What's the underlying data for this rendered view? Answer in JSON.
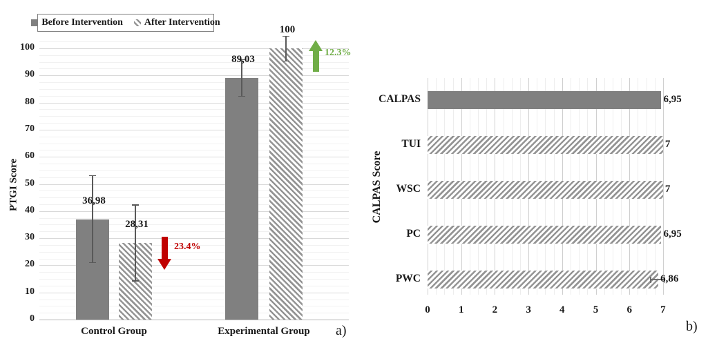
{
  "figure": {
    "background": "#ffffff"
  },
  "colors": {
    "bar_solid": "#808080",
    "hatch_line": "#949494",
    "grid_major": "#d9d9d9",
    "grid_minor": "#f1f1f1",
    "axis_line": "#b5b5b5",
    "error_bar": "#595959",
    "decrease": "#c00000",
    "increase": "#70ad47",
    "text": "#1a1a1a"
  },
  "chart_data": [
    {
      "panel_label": "a)",
      "type": "bar",
      "orientation": "vertical",
      "ylabel": "PTGI Score",
      "ylim": [
        0,
        100
      ],
      "ymajor": 10,
      "yminor": 2.5,
      "yticks": [
        "0",
        "10",
        "20",
        "30",
        "40",
        "50",
        "60",
        "70",
        "80",
        "90",
        "100"
      ],
      "categories": [
        "Control Group",
        "Experimental Group"
      ],
      "legend_position": "top-left",
      "series": [
        {
          "name": "Before Intervention",
          "style": "solid",
          "values": [
            36.98,
            89.03
          ],
          "value_labels": [
            "36,98",
            "89,03"
          ],
          "error_lo": [
            21,
            82.3
          ],
          "error_hi": [
            53,
            95.8
          ]
        },
        {
          "name": "After Intervention",
          "style": "hatched",
          "values": [
            28.31,
            100
          ],
          "value_labels": [
            "28,31",
            "100"
          ],
          "error_lo": [
            14.3,
            95.3
          ],
          "error_hi": [
            42.3,
            104.5
          ]
        }
      ],
      "annotations": [
        {
          "text": "23.4%",
          "direction": "down",
          "color": "#c00000",
          "category": "Control Group"
        },
        {
          "text": "12.3%",
          "direction": "up",
          "color": "#70ad47",
          "category": "Experimental Group"
        }
      ]
    },
    {
      "panel_label": "b)",
      "type": "bar",
      "orientation": "horizontal",
      "axis_label": "CALPAS Score",
      "xlim": [
        0,
        7
      ],
      "xmajor": 1,
      "xminor": 0.25,
      "xticks": [
        "0",
        "1",
        "2",
        "3",
        "4",
        "5",
        "6",
        "7"
      ],
      "categories": [
        "CALPAS",
        "TUI",
        "WSC",
        "PC",
        "PWC"
      ],
      "values": [
        6.95,
        7,
        7,
        6.95,
        6.86
      ],
      "value_labels": [
        "6,95",
        "7",
        "7",
        "6,95",
        "6,86"
      ],
      "styles": [
        "solid",
        "hatched",
        "hatched",
        "hatched",
        "hatched"
      ],
      "error_bar": {
        "category": "PWC",
        "lo": 6.63,
        "hi": 7.05
      }
    }
  ]
}
